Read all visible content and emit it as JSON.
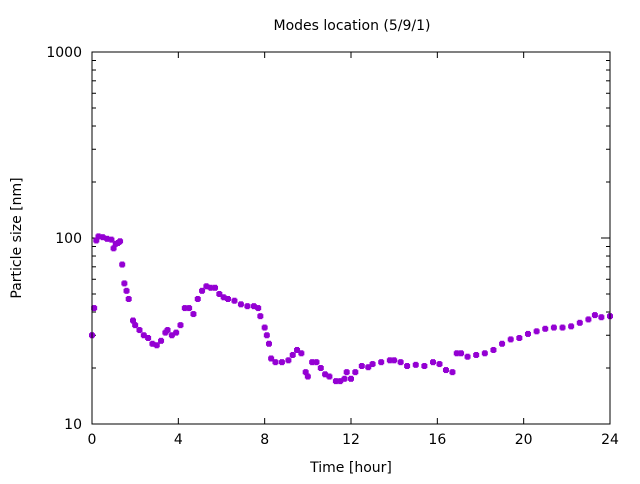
{
  "chart_data": {
    "type": "scatter",
    "title": "Modes location (5/9/1)",
    "xlabel": "Time [hour]",
    "ylabel": "Particle size [nm]",
    "xlim": [
      0,
      24
    ],
    "ylim": [
      10,
      1000
    ],
    "yscale": "log",
    "xticks": [
      "0",
      "4",
      "8",
      "12",
      "16",
      "20",
      "24"
    ],
    "yticks": [
      "10",
      "100",
      "1000"
    ],
    "grid": false,
    "color": "#9400d3",
    "series": [
      {
        "name": "modes",
        "x": [
          0.0,
          0.1,
          0.2,
          0.3,
          0.5,
          0.7,
          0.9,
          1.0,
          1.1,
          1.2,
          1.3,
          1.4,
          1.5,
          1.6,
          1.7,
          1.9,
          2.0,
          2.2,
          2.4,
          2.6,
          2.8,
          3.0,
          3.2,
          3.4,
          3.5,
          3.7,
          3.9,
          4.1,
          4.3,
          4.5,
          4.7,
          4.9,
          5.1,
          5.3,
          5.5,
          5.7,
          5.9,
          6.1,
          6.3,
          6.6,
          6.9,
          7.2,
          7.5,
          7.7,
          7.8,
          8.0,
          8.1,
          8.2,
          8.3,
          8.5,
          8.8,
          9.1,
          9.3,
          9.5,
          9.7,
          9.9,
          10.0,
          10.2,
          10.4,
          10.6,
          10.8,
          11.0,
          11.3,
          11.5,
          11.7,
          11.8,
          12.0,
          12.2,
          12.5,
          12.8,
          13.0,
          13.4,
          13.8,
          14.0,
          14.3,
          14.6,
          15.0,
          15.4,
          15.8,
          16.1,
          16.4,
          16.7,
          16.9,
          17.1,
          17.4,
          17.8,
          18.2,
          18.6,
          19.0,
          19.4,
          19.8,
          20.2,
          20.6,
          21.0,
          21.4,
          21.8,
          22.2,
          22.6,
          23.0,
          23.3,
          23.6,
          24.0
        ],
        "y": [
          30,
          42,
          97,
          102,
          101,
          99,
          98,
          88,
          93,
          94,
          96,
          72,
          57,
          52,
          47,
          36,
          34,
          32,
          30,
          29,
          27,
          26.5,
          28,
          31,
          32,
          30,
          31,
          34,
          42,
          42,
          39,
          47,
          52,
          55,
          54,
          54,
          50,
          48,
          47,
          46,
          44,
          43,
          43,
          42,
          38,
          33,
          30,
          27,
          22.5,
          21.5,
          21.5,
          22,
          23.5,
          25,
          24,
          19,
          18,
          21.5,
          21.5,
          20,
          18.5,
          18,
          17,
          17,
          17.5,
          19,
          17.5,
          19,
          20.5,
          20.2,
          21,
          21.5,
          22,
          22,
          21.5,
          20.5,
          20.8,
          20.5,
          21.5,
          21,
          19.5,
          19,
          24,
          24,
          23,
          23.5,
          24,
          25,
          27,
          28.5,
          29,
          30.5,
          31.5,
          32.5,
          33,
          33,
          33.5,
          35,
          36.5,
          38.5,
          37.5,
          38
        ]
      }
    ]
  }
}
